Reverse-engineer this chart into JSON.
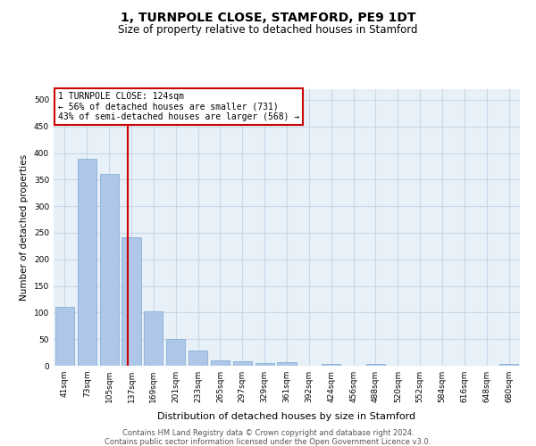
{
  "title": "1, TURNPOLE CLOSE, STAMFORD, PE9 1DT",
  "subtitle": "Size of property relative to detached houses in Stamford",
  "xlabel": "Distribution of detached houses by size in Stamford",
  "ylabel": "Number of detached properties",
  "bar_labels": [
    "41sqm",
    "73sqm",
    "105sqm",
    "137sqm",
    "169sqm",
    "201sqm",
    "233sqm",
    "265sqm",
    "297sqm",
    "329sqm",
    "361sqm",
    "392sqm",
    "424sqm",
    "456sqm",
    "488sqm",
    "520sqm",
    "552sqm",
    "584sqm",
    "616sqm",
    "648sqm",
    "680sqm"
  ],
  "bar_values": [
    110,
    390,
    360,
    242,
    103,
    50,
    29,
    10,
    8,
    5,
    6,
    0,
    4,
    0,
    3,
    0,
    0,
    0,
    0,
    0,
    3
  ],
  "bar_color": "#aec6e8",
  "bar_edgecolor": "#7aaad0",
  "bar_linewidth": 0.5,
  "vline_x": 2.82,
  "vline_color": "#cc0000",
  "vline_linewidth": 1.5,
  "annotation_text": "1 TURNPOLE CLOSE: 124sqm\n← 56% of detached houses are smaller (731)\n43% of semi-detached houses are larger (568) →",
  "annotation_box_color": "#cc0000",
  "ylim": [
    0,
    520
  ],
  "yticks": [
    0,
    50,
    100,
    150,
    200,
    250,
    300,
    350,
    400,
    450,
    500
  ],
  "grid_color": "#c8d8e8",
  "background_color": "#e8f0f8",
  "footer_line1": "Contains HM Land Registry data © Crown copyright and database right 2024.",
  "footer_line2": "Contains public sector information licensed under the Open Government Licence v3.0.",
  "title_fontsize": 10,
  "subtitle_fontsize": 8.5,
  "tick_fontsize": 6.5,
  "ylabel_fontsize": 7.5,
  "xlabel_fontsize": 8,
  "annotation_fontsize": 7,
  "footer_fontsize": 6
}
